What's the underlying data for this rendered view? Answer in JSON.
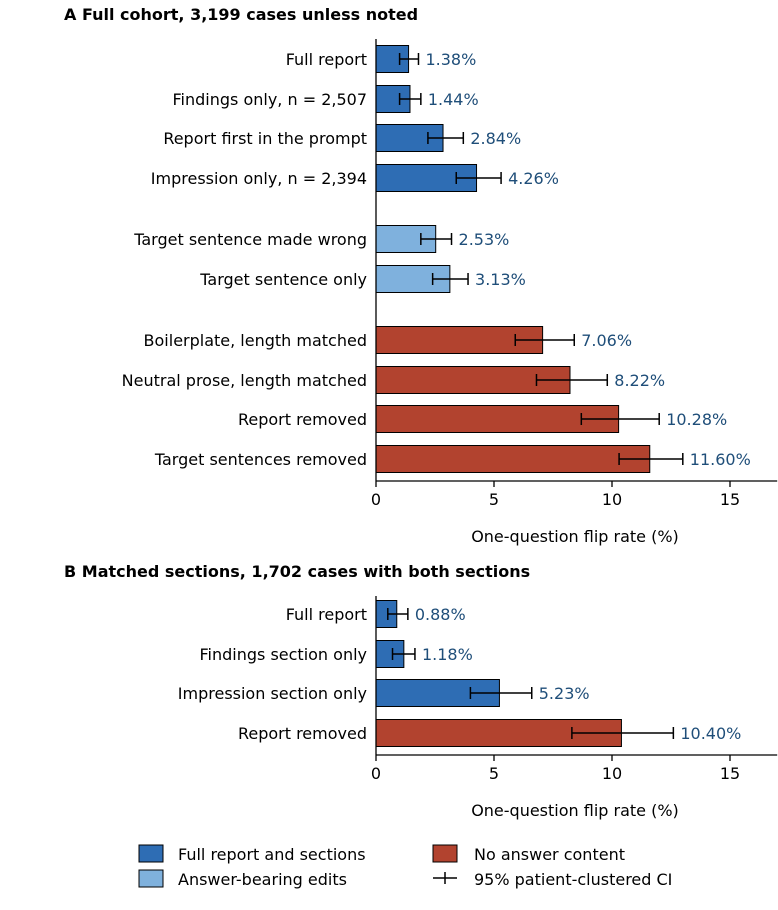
{
  "colors": {
    "full_sections": "#2e6db4",
    "answer_bearing": "#7fb1dd",
    "no_answer": "#b2432f",
    "value_text": "#1f4e79"
  },
  "chart_data": [
    {
      "type": "bar",
      "orientation": "horizontal",
      "title": "A  Full cohort, 3,199 cases unless noted",
      "xlabel": "One-question flip rate (%)",
      "xlim": [
        0,
        17
      ],
      "xticks": [
        0,
        5,
        10,
        15
      ],
      "bars": [
        {
          "label": "Full report",
          "value": 1.38,
          "ci": [
            1.0,
            1.8
          ],
          "value_label": "1.38%",
          "group": "full_sections"
        },
        {
          "label": "Findings only, n = 2,507",
          "value": 1.44,
          "ci": [
            1.0,
            1.9
          ],
          "value_label": "1.44%",
          "group": "full_sections"
        },
        {
          "label": "Report first in the prompt",
          "value": 2.84,
          "ci": [
            2.2,
            3.7
          ],
          "value_label": "2.84%",
          "group": "full_sections"
        },
        {
          "label": "Impression only, n = 2,394",
          "value": 4.26,
          "ci": [
            3.4,
            5.3
          ],
          "value_label": "4.26%",
          "group": "full_sections"
        },
        {
          "label": "Target sentence made wrong",
          "value": 2.53,
          "ci": [
            1.9,
            3.2
          ],
          "value_label": "2.53%",
          "group": "answer_bearing"
        },
        {
          "label": "Target sentence only",
          "value": 3.13,
          "ci": [
            2.4,
            3.9
          ],
          "value_label": "3.13%",
          "group": "answer_bearing"
        },
        {
          "label": "Boilerplate, length matched",
          "value": 7.06,
          "ci": [
            5.9,
            8.4
          ],
          "value_label": "7.06%",
          "group": "no_answer"
        },
        {
          "label": "Neutral prose, length matched",
          "value": 8.22,
          "ci": [
            6.8,
            9.8
          ],
          "value_label": "8.22%",
          "group": "no_answer"
        },
        {
          "label": "Report removed",
          "value": 10.28,
          "ci": [
            8.7,
            12.0
          ],
          "value_label": "10.28%",
          "group": "no_answer"
        },
        {
          "label": "Target sentences removed",
          "value": 11.6,
          "ci": [
            10.3,
            13.0
          ],
          "value_label": "11.60%",
          "group": "no_answer"
        }
      ]
    },
    {
      "type": "bar",
      "orientation": "horizontal",
      "title": "B  Matched sections, 1,702 cases with both sections",
      "xlabel": "One-question flip rate (%)",
      "xlim": [
        0,
        17
      ],
      "xticks": [
        0,
        5,
        10,
        15
      ],
      "bars": [
        {
          "label": "Full report",
          "value": 0.88,
          "ci": [
            0.5,
            1.35
          ],
          "value_label": "0.88%",
          "group": "full_sections"
        },
        {
          "label": "Findings section only",
          "value": 1.18,
          "ci": [
            0.7,
            1.65
          ],
          "value_label": "1.18%",
          "group": "full_sections"
        },
        {
          "label": "Impression section only",
          "value": 5.23,
          "ci": [
            4.0,
            6.6
          ],
          "value_label": "5.23%",
          "group": "full_sections"
        },
        {
          "label": "Report removed",
          "value": 10.4,
          "ci": [
            8.3,
            12.6
          ],
          "value_label": "10.40%",
          "group": "no_answer"
        }
      ]
    }
  ],
  "legend": {
    "placement": "bottom",
    "items": [
      {
        "label": "Full report and sections",
        "swatch": "full_sections"
      },
      {
        "label": "No answer content",
        "swatch": "no_answer"
      },
      {
        "label": "Answer-bearing edits",
        "swatch": "answer_bearing"
      },
      {
        "label": "95% patient-clustered CI",
        "swatch": "ci"
      }
    ]
  }
}
